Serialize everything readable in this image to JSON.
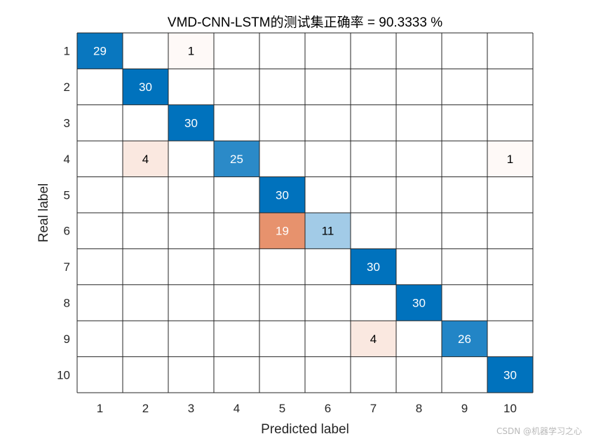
{
  "watermark": "CSDN @机器学习之心",
  "chart_data": {
    "type": "heatmap",
    "title": "VMD-CNN-LSTM的测试集正确率 = 90.3333 %",
    "xlabel": "Predicted label",
    "ylabel": "Real label",
    "x_categories": [
      "1",
      "2",
      "3",
      "4",
      "5",
      "6",
      "7",
      "8",
      "9",
      "10"
    ],
    "y_categories": [
      "1",
      "2",
      "3",
      "4",
      "5",
      "6",
      "7",
      "8",
      "9",
      "10"
    ],
    "matrix": [
      [
        29,
        0,
        1,
        0,
        0,
        0,
        0,
        0,
        0,
        0
      ],
      [
        0,
        30,
        0,
        0,
        0,
        0,
        0,
        0,
        0,
        0
      ],
      [
        0,
        0,
        30,
        0,
        0,
        0,
        0,
        0,
        0,
        0
      ],
      [
        0,
        4,
        0,
        25,
        0,
        0,
        0,
        0,
        0,
        1
      ],
      [
        0,
        0,
        0,
        0,
        30,
        0,
        0,
        0,
        0,
        0
      ],
      [
        0,
        0,
        0,
        0,
        19,
        11,
        0,
        0,
        0,
        0
      ],
      [
        0,
        0,
        0,
        0,
        0,
        0,
        30,
        0,
        0,
        0
      ],
      [
        0,
        0,
        0,
        0,
        0,
        0,
        0,
        30,
        0,
        0
      ],
      [
        0,
        0,
        0,
        0,
        0,
        0,
        4,
        0,
        26,
        0
      ],
      [
        0,
        0,
        0,
        0,
        0,
        0,
        0,
        0,
        0,
        30
      ]
    ],
    "color_max": 30,
    "colors": {
      "diagonal": "#0072bd",
      "off_diagonal": "#d95319",
      "background": "#ffffff",
      "grid": "#262626"
    },
    "grid": true
  }
}
